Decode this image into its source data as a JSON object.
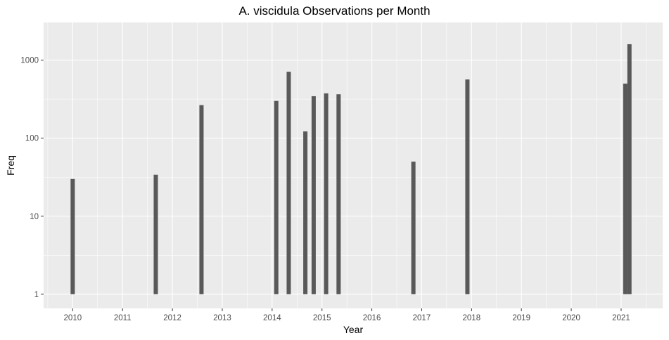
{
  "chart_data": {
    "type": "bar",
    "title": "A. viscidula Observations per Month",
    "xlabel": "Year",
    "ylabel": "Freq",
    "y_scale": "log10",
    "ylim": [
      1,
      2000
    ],
    "xlim": [
      "2009-06-01",
      "2021-11-01"
    ],
    "x_ticks": [
      "2010",
      "2011",
      "2012",
      "2013",
      "2014",
      "2015",
      "2016",
      "2017",
      "2018",
      "2019",
      "2020",
      "2021"
    ],
    "y_ticks": [
      1,
      10,
      100,
      1000
    ],
    "y_tick_labels": [
      "1",
      "10",
      "100",
      "1000"
    ],
    "grid": true,
    "panel_background": "#ebebeb",
    "bar_color": "#595959",
    "bars": [
      {
        "x": "2010-01",
        "value": 30
      },
      {
        "x": "2011-09",
        "value": 34
      },
      {
        "x": "2012-08",
        "value": 265
      },
      {
        "x": "2014-02",
        "value": 300
      },
      {
        "x": "2014-05",
        "value": 710
      },
      {
        "x": "2014-09",
        "value": 122
      },
      {
        "x": "2014-11",
        "value": 345
      },
      {
        "x": "2015-02",
        "value": 375
      },
      {
        "x": "2015-05",
        "value": 365
      },
      {
        "x": "2016-11",
        "value": 50
      },
      {
        "x": "2017-12",
        "value": 565
      },
      {
        "x": "2021-02",
        "value": 500
      },
      {
        "x": "2021-03",
        "value": 1600
      }
    ]
  }
}
